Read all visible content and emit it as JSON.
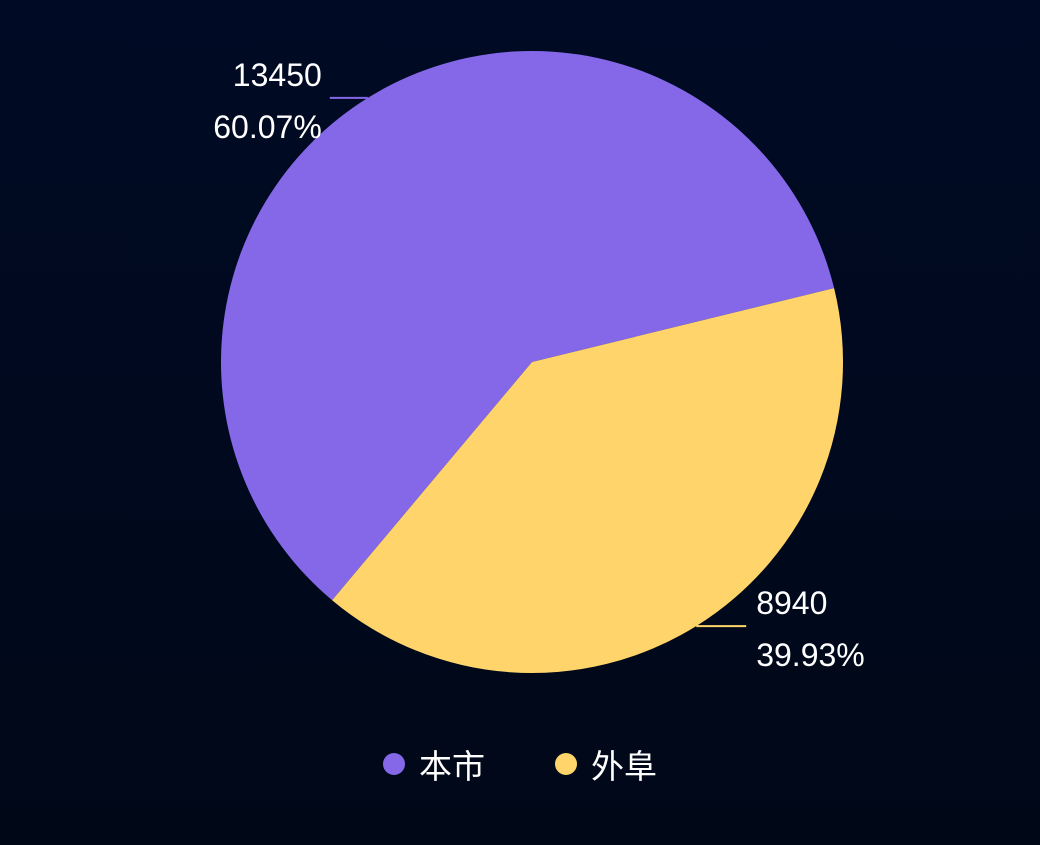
{
  "chart_data": {
    "type": "pie",
    "title": "",
    "slices": [
      {
        "name": "本市",
        "value": 13450,
        "percent": "60.07%",
        "color": "#8468e8"
      },
      {
        "name": "外阜",
        "value": 8940,
        "percent": "39.93%",
        "color": "#ffd56b"
      }
    ],
    "start_angle_deg": 130,
    "legend_position": "bottom-center",
    "grid": false
  },
  "colors": {
    "background": "#000a20",
    "label_text": "#ffffff"
  }
}
